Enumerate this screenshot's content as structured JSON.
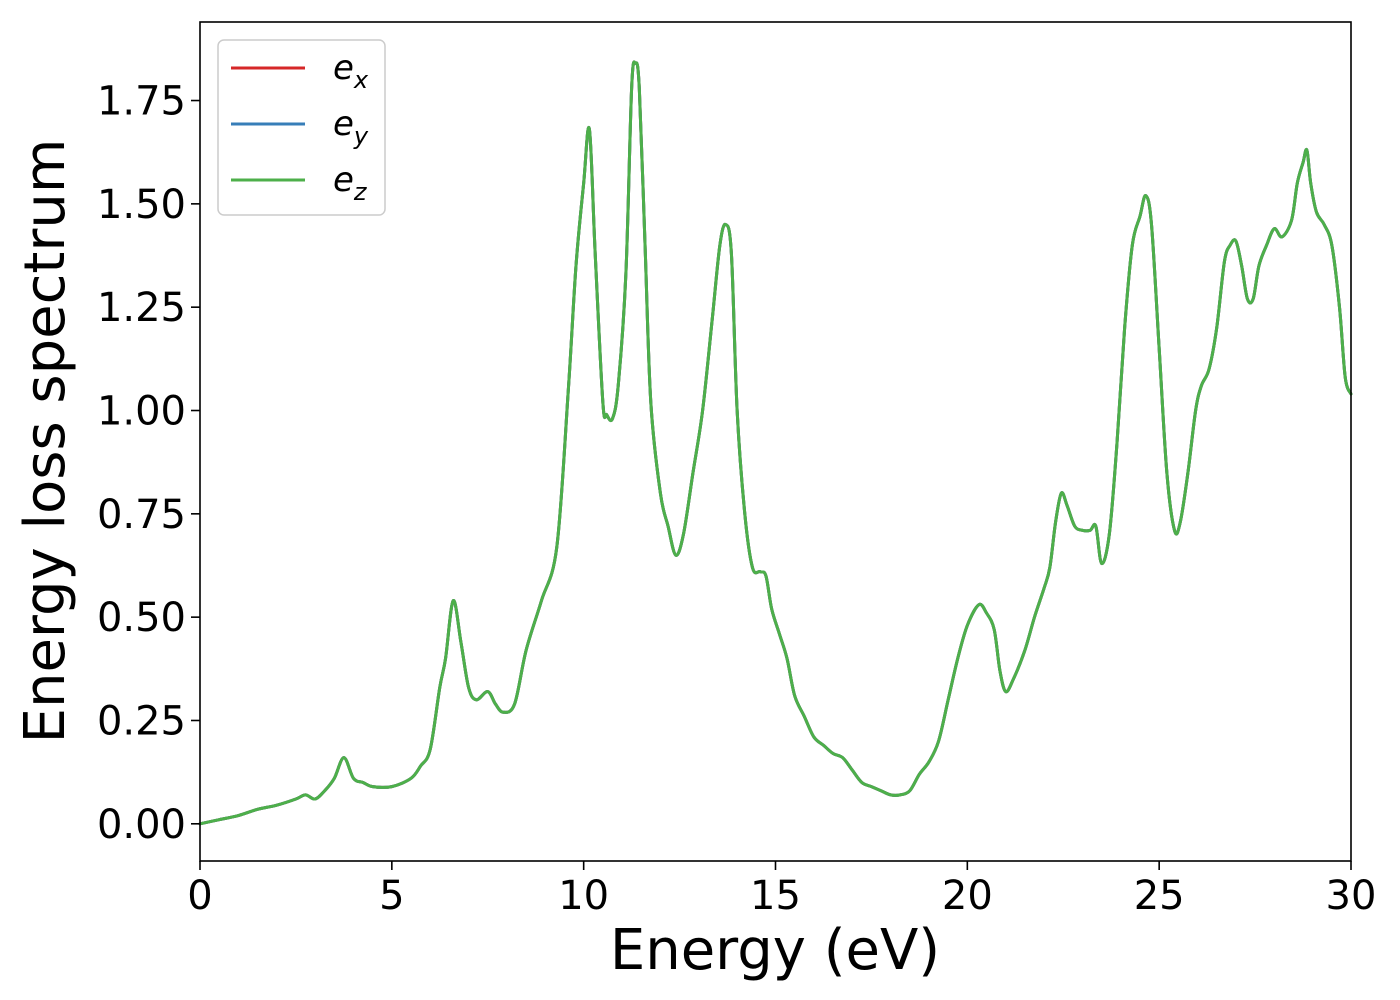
{
  "chart_data": {
    "type": "line",
    "title": "",
    "xlabel": "Energy (eV)",
    "ylabel": "Energy loss spectrum",
    "xlim": [
      0,
      30
    ],
    "ylim": [
      -0.09,
      1.94
    ],
    "xticks": [
      0,
      5,
      10,
      15,
      20,
      25,
      30
    ],
    "xtick_labels": [
      "0",
      "5",
      "10",
      "15",
      "20",
      "25",
      "30"
    ],
    "yticks": [
      0,
      0.25,
      0.5,
      0.75,
      1.0,
      1.25,
      1.5,
      1.75
    ],
    "ytick_labels": [
      "0.00",
      "0.25",
      "0.50",
      "0.75",
      "1.00",
      "1.25",
      "1.50",
      "1.75"
    ],
    "grid": false,
    "legend_position": "top-left",
    "x": [
      0,
      0.5,
      1.0,
      1.5,
      2.0,
      2.5,
      2.75,
      3.0,
      3.25,
      3.5,
      3.75,
      4.0,
      4.25,
      4.5,
      5.0,
      5.5,
      5.75,
      6.0,
      6.25,
      6.4,
      6.6,
      6.8,
      7.0,
      7.2,
      7.5,
      7.7,
      7.9,
      8.2,
      8.5,
      8.9,
      9.3,
      9.6,
      9.8,
      10.0,
      10.15,
      10.3,
      10.5,
      10.6,
      10.75,
      10.9,
      11.1,
      11.25,
      11.35,
      11.45,
      11.6,
      11.75,
      12.0,
      12.2,
      12.4,
      12.6,
      12.85,
      13.1,
      13.35,
      13.55,
      13.7,
      13.85,
      14.0,
      14.2,
      14.4,
      14.6,
      14.75,
      14.9,
      15.1,
      15.3,
      15.5,
      15.75,
      16.0,
      16.25,
      16.5,
      16.75,
      17.0,
      17.25,
      17.5,
      17.75,
      18.0,
      18.25,
      18.5,
      18.75,
      19.0,
      19.25,
      19.5,
      19.75,
      20.0,
      20.3,
      20.5,
      20.7,
      20.85,
      21.0,
      21.2,
      21.5,
      21.75,
      22.0,
      22.15,
      22.3,
      22.45,
      22.6,
      22.8,
      23.0,
      23.2,
      23.35,
      23.5,
      23.7,
      23.9,
      24.1,
      24.3,
      24.5,
      24.65,
      24.8,
      25.0,
      25.2,
      25.4,
      25.55,
      25.75,
      25.95,
      26.1,
      26.3,
      26.5,
      26.7,
      26.85,
      27.0,
      27.15,
      27.3,
      27.45,
      27.6,
      27.8,
      28.0,
      28.2,
      28.45,
      28.6,
      28.75,
      28.85,
      28.95,
      29.1,
      29.3,
      29.5,
      29.7,
      29.85,
      30.0
    ],
    "series": [
      {
        "name": "e_x",
        "color": "#d62728",
        "y": [
          0,
          0.01,
          0.02,
          0.035,
          0.045,
          0.06,
          0.07,
          0.06,
          0.08,
          0.11,
          0.16,
          0.11,
          0.1,
          0.09,
          0.09,
          0.11,
          0.14,
          0.18,
          0.33,
          0.4,
          0.54,
          0.44,
          0.33,
          0.3,
          0.32,
          0.29,
          0.27,
          0.29,
          0.42,
          0.54,
          0.67,
          1.05,
          1.35,
          1.55,
          1.68,
          1.38,
          1.02,
          0.99,
          0.98,
          1.06,
          1.33,
          1.78,
          1.84,
          1.78,
          1.4,
          1.02,
          0.8,
          0.72,
          0.65,
          0.7,
          0.85,
          1.0,
          1.22,
          1.4,
          1.45,
          1.38,
          1.0,
          0.75,
          0.62,
          0.61,
          0.6,
          0.52,
          0.46,
          0.4,
          0.31,
          0.26,
          0.21,
          0.19,
          0.17,
          0.16,
          0.13,
          0.1,
          0.09,
          0.08,
          0.07,
          0.07,
          0.08,
          0.12,
          0.15,
          0.2,
          0.3,
          0.4,
          0.48,
          0.53,
          0.51,
          0.47,
          0.37,
          0.32,
          0.35,
          0.42,
          0.5,
          0.57,
          0.62,
          0.73,
          0.8,
          0.77,
          0.72,
          0.71,
          0.71,
          0.72,
          0.63,
          0.7,
          0.92,
          1.2,
          1.4,
          1.47,
          1.52,
          1.45,
          1.15,
          0.85,
          0.71,
          0.73,
          0.85,
          1.0,
          1.06,
          1.1,
          1.2,
          1.36,
          1.4,
          1.41,
          1.35,
          1.27,
          1.27,
          1.35,
          1.4,
          1.44,
          1.42,
          1.46,
          1.55,
          1.6,
          1.63,
          1.55,
          1.48,
          1.45,
          1.4,
          1.25,
          1.08,
          1.04
        ]
      },
      {
        "name": "e_y",
        "color": "#377eb8",
        "y": [
          0,
          0.01,
          0.02,
          0.035,
          0.045,
          0.06,
          0.07,
          0.06,
          0.08,
          0.11,
          0.16,
          0.11,
          0.1,
          0.09,
          0.09,
          0.11,
          0.14,
          0.18,
          0.33,
          0.4,
          0.54,
          0.44,
          0.33,
          0.3,
          0.32,
          0.29,
          0.27,
          0.29,
          0.42,
          0.54,
          0.67,
          1.05,
          1.35,
          1.55,
          1.68,
          1.38,
          1.02,
          0.99,
          0.98,
          1.06,
          1.33,
          1.78,
          1.84,
          1.78,
          1.4,
          1.02,
          0.8,
          0.72,
          0.65,
          0.7,
          0.85,
          1.0,
          1.22,
          1.4,
          1.45,
          1.38,
          1.0,
          0.75,
          0.62,
          0.61,
          0.6,
          0.52,
          0.46,
          0.4,
          0.31,
          0.26,
          0.21,
          0.19,
          0.17,
          0.16,
          0.13,
          0.1,
          0.09,
          0.08,
          0.07,
          0.07,
          0.08,
          0.12,
          0.15,
          0.2,
          0.3,
          0.4,
          0.48,
          0.53,
          0.51,
          0.47,
          0.37,
          0.32,
          0.35,
          0.42,
          0.5,
          0.57,
          0.62,
          0.73,
          0.8,
          0.77,
          0.72,
          0.71,
          0.71,
          0.72,
          0.63,
          0.7,
          0.92,
          1.2,
          1.4,
          1.47,
          1.52,
          1.45,
          1.15,
          0.85,
          0.71,
          0.73,
          0.85,
          1.0,
          1.06,
          1.1,
          1.2,
          1.36,
          1.4,
          1.41,
          1.35,
          1.27,
          1.27,
          1.35,
          1.4,
          1.44,
          1.42,
          1.46,
          1.55,
          1.6,
          1.63,
          1.55,
          1.48,
          1.45,
          1.4,
          1.25,
          1.08,
          1.04
        ]
      },
      {
        "name": "e_z",
        "color": "#4daf4a",
        "y": [
          0,
          0.01,
          0.02,
          0.035,
          0.045,
          0.06,
          0.07,
          0.06,
          0.08,
          0.11,
          0.16,
          0.11,
          0.1,
          0.09,
          0.09,
          0.11,
          0.14,
          0.18,
          0.33,
          0.4,
          0.54,
          0.44,
          0.33,
          0.3,
          0.32,
          0.29,
          0.27,
          0.29,
          0.42,
          0.54,
          0.67,
          1.05,
          1.35,
          1.55,
          1.68,
          1.38,
          1.02,
          0.99,
          0.98,
          1.06,
          1.33,
          1.78,
          1.84,
          1.78,
          1.4,
          1.02,
          0.8,
          0.72,
          0.65,
          0.7,
          0.85,
          1.0,
          1.22,
          1.4,
          1.45,
          1.38,
          1.0,
          0.75,
          0.62,
          0.61,
          0.6,
          0.52,
          0.46,
          0.4,
          0.31,
          0.26,
          0.21,
          0.19,
          0.17,
          0.16,
          0.13,
          0.1,
          0.09,
          0.08,
          0.07,
          0.07,
          0.08,
          0.12,
          0.15,
          0.2,
          0.3,
          0.4,
          0.48,
          0.53,
          0.51,
          0.47,
          0.37,
          0.32,
          0.35,
          0.42,
          0.5,
          0.57,
          0.62,
          0.73,
          0.8,
          0.77,
          0.72,
          0.71,
          0.71,
          0.72,
          0.63,
          0.7,
          0.92,
          1.2,
          1.4,
          1.47,
          1.52,
          1.45,
          1.15,
          0.85,
          0.71,
          0.73,
          0.85,
          1.0,
          1.06,
          1.1,
          1.2,
          1.36,
          1.4,
          1.41,
          1.35,
          1.27,
          1.27,
          1.35,
          1.4,
          1.44,
          1.42,
          1.46,
          1.55,
          1.6,
          1.63,
          1.55,
          1.48,
          1.45,
          1.4,
          1.25,
          1.08,
          1.04
        ]
      }
    ],
    "legend": [
      {
        "base": "e",
        "sub": "x",
        "color": "#d62728"
      },
      {
        "base": "e",
        "sub": "y",
        "color": "#377eb8"
      },
      {
        "base": "e",
        "sub": "z",
        "color": "#4daf4a"
      }
    ]
  }
}
